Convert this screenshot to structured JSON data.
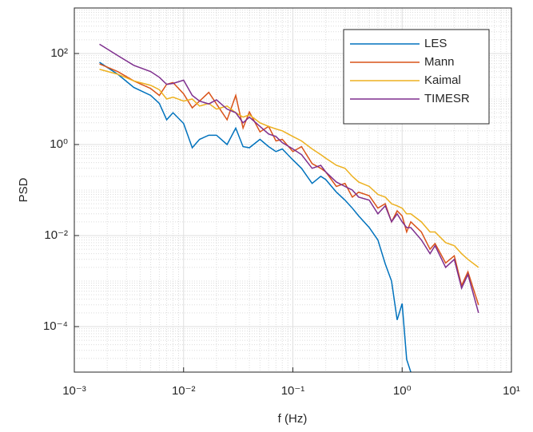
{
  "chart_data": {
    "type": "line",
    "xlabel": "f (Hz)",
    "ylabel": "PSD",
    "xscale": "log",
    "yscale": "log",
    "grid": true,
    "minor_grid": true,
    "legend": "top-right",
    "xlim": [
      0.001,
      10
    ],
    "ylim": [
      1e-05,
      1000
    ],
    "xticks": [
      {
        "value": 0.001,
        "label": "10⁻³"
      },
      {
        "value": 0.01,
        "label": "10⁻²"
      },
      {
        "value": 0.1,
        "label": "10⁻¹"
      },
      {
        "value": 1,
        "label": "10⁰"
      },
      {
        "value": 10,
        "label": "10¹"
      }
    ],
    "yticks": [
      {
        "value": 0.0001,
        "label": "10⁻⁴"
      },
      {
        "value": 0.01,
        "label": "10⁻²"
      },
      {
        "value": 1,
        "label": "10⁰"
      },
      {
        "value": 100,
        "label": "10²"
      }
    ],
    "x": [
      0.0017,
      0.0025,
      0.0035,
      0.005,
      0.006,
      0.007,
      0.008,
      0.01,
      0.012,
      0.014,
      0.017,
      0.02,
      0.025,
      0.03,
      0.035,
      0.04,
      0.05,
      0.06,
      0.07,
      0.08,
      0.1,
      0.12,
      0.15,
      0.18,
      0.2,
      0.25,
      0.3,
      0.35,
      0.4,
      0.5,
      0.6,
      0.7,
      0.8,
      0.9,
      1.0,
      1.1,
      1.2,
      1.5,
      1.8,
      2,
      2.5,
      3,
      3.5,
      4,
      5
    ],
    "series": [
      {
        "name": "LES",
        "color": "#0072BD",
        "values": [
          64,
          35,
          18,
          12,
          8,
          3.5,
          5,
          2.9,
          0.85,
          1.3,
          1.6,
          1.6,
          1.0,
          2.3,
          0.9,
          0.85,
          1.3,
          0.9,
          0.7,
          0.8,
          0.46,
          0.3,
          0.14,
          0.2,
          0.17,
          0.09,
          0.06,
          0.04,
          0.027,
          0.015,
          0.008,
          0.0024,
          0.001,
          0.00014,
          0.00032,
          1.9e-05,
          1e-05,
          null,
          null,
          null,
          null,
          null,
          null,
          null,
          null
        ]
      },
      {
        "name": "Mann",
        "color": "#D95319",
        "values": [
          59,
          40,
          25,
          17,
          12,
          21,
          23,
          13,
          6.4,
          9,
          14,
          7.8,
          3.5,
          12,
          2.3,
          5.2,
          1.9,
          2.5,
          1.2,
          1.3,
          0.7,
          0.9,
          0.38,
          0.3,
          0.25,
          0.12,
          0.14,
          0.07,
          0.09,
          0.075,
          0.04,
          0.05,
          0.02,
          0.035,
          0.027,
          0.012,
          0.02,
          0.012,
          0.005,
          0.0067,
          0.0025,
          0.0036,
          0.0008,
          0.0016,
          0.0003
        ]
      },
      {
        "name": "Kaimal",
        "color": "#EDB120",
        "values": [
          45,
          35,
          25,
          20,
          16,
          10,
          11,
          9,
          10,
          7,
          8,
          6,
          7,
          5,
          4,
          4.5,
          3,
          2.5,
          2.2,
          2,
          1.5,
          1.2,
          0.8,
          0.6,
          0.5,
          0.35,
          0.3,
          0.2,
          0.15,
          0.12,
          0.08,
          0.07,
          0.05,
          0.045,
          0.04,
          0.03,
          0.03,
          0.02,
          0.012,
          0.012,
          0.007,
          0.006,
          0.004,
          0.003,
          0.002
        ]
      },
      {
        "name": "TIMESR",
        "color": "#7E2F8E",
        "values": [
          160,
          90,
          55,
          40,
          30,
          21,
          22,
          26,
          12,
          9,
          7.8,
          9.6,
          6,
          5,
          3,
          4,
          2.5,
          1.7,
          1.5,
          1.1,
          0.8,
          0.6,
          0.3,
          0.35,
          0.25,
          0.15,
          0.12,
          0.1,
          0.07,
          0.06,
          0.03,
          0.045,
          0.02,
          0.03,
          0.02,
          0.015,
          0.015,
          0.008,
          0.004,
          0.006,
          0.002,
          0.003,
          0.0007,
          0.0014,
          0.0002
        ]
      }
    ]
  }
}
